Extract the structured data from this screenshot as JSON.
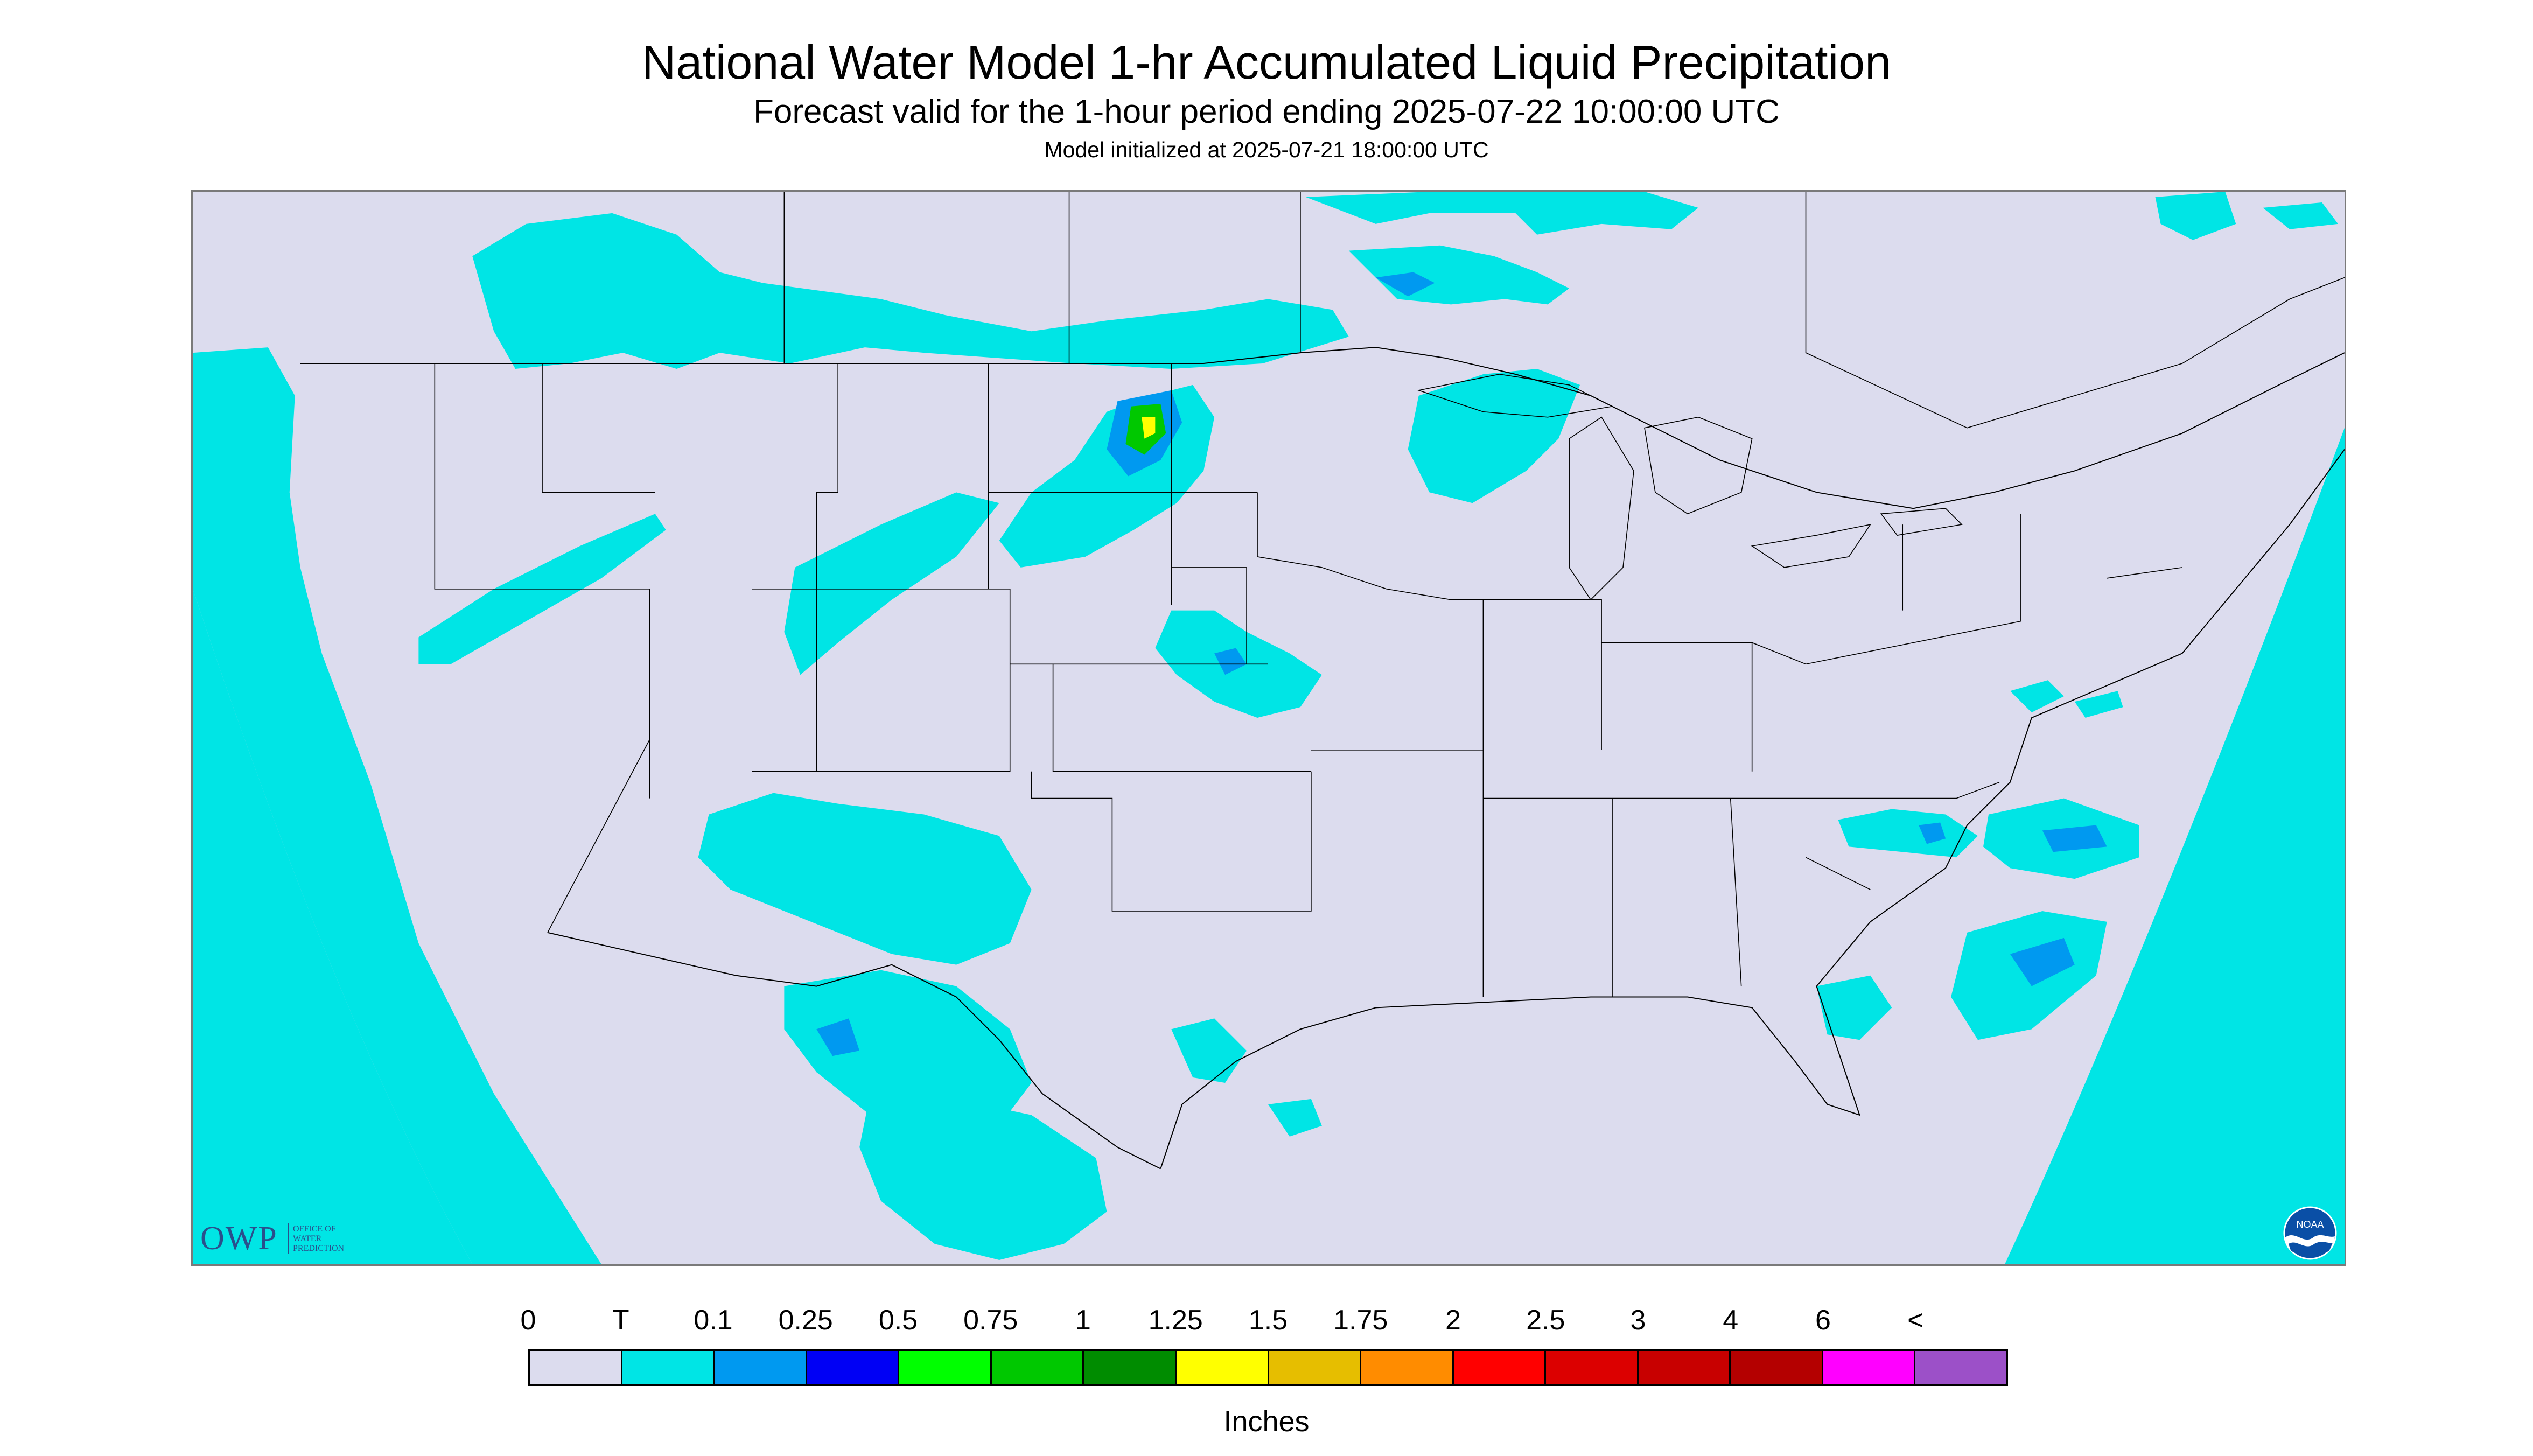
{
  "header": {
    "title": "National Water Model 1-hr Accumulated Liquid Precipitation",
    "subtitle": "Forecast valid for the 1-hour period ending 2025-07-22 10:00:00 UTC",
    "init": "Model initialized at 2025-07-21 18:00:00 UTC"
  },
  "logos": {
    "owp_mark": "OWP",
    "owp_text": [
      "Office of",
      "Water",
      "Prediction"
    ],
    "noaa_text": "NOAA"
  },
  "legend": {
    "units": "Inches",
    "labels": [
      "0",
      "T",
      "0.1",
      "0.25",
      "0.5",
      "0.75",
      "1",
      "1.25",
      "1.5",
      "1.75",
      "2",
      "2.5",
      "3",
      "4",
      "6",
      "<"
    ],
    "colors": [
      "#dcdcee",
      "#00e5e5",
      "#0099f0",
      "#0000f5",
      "#00ff00",
      "#00c800",
      "#008c00",
      "#ffff00",
      "#e6be00",
      "#ff8c00",
      "#ff0000",
      "#dc0000",
      "#c80000",
      "#b40000",
      "#ff00ff",
      "#9c50c8"
    ]
  },
  "map": {
    "background_color": "#dcdcee",
    "outside_domain_color": "#00e5e5",
    "boundary_color": "#000000"
  }
}
